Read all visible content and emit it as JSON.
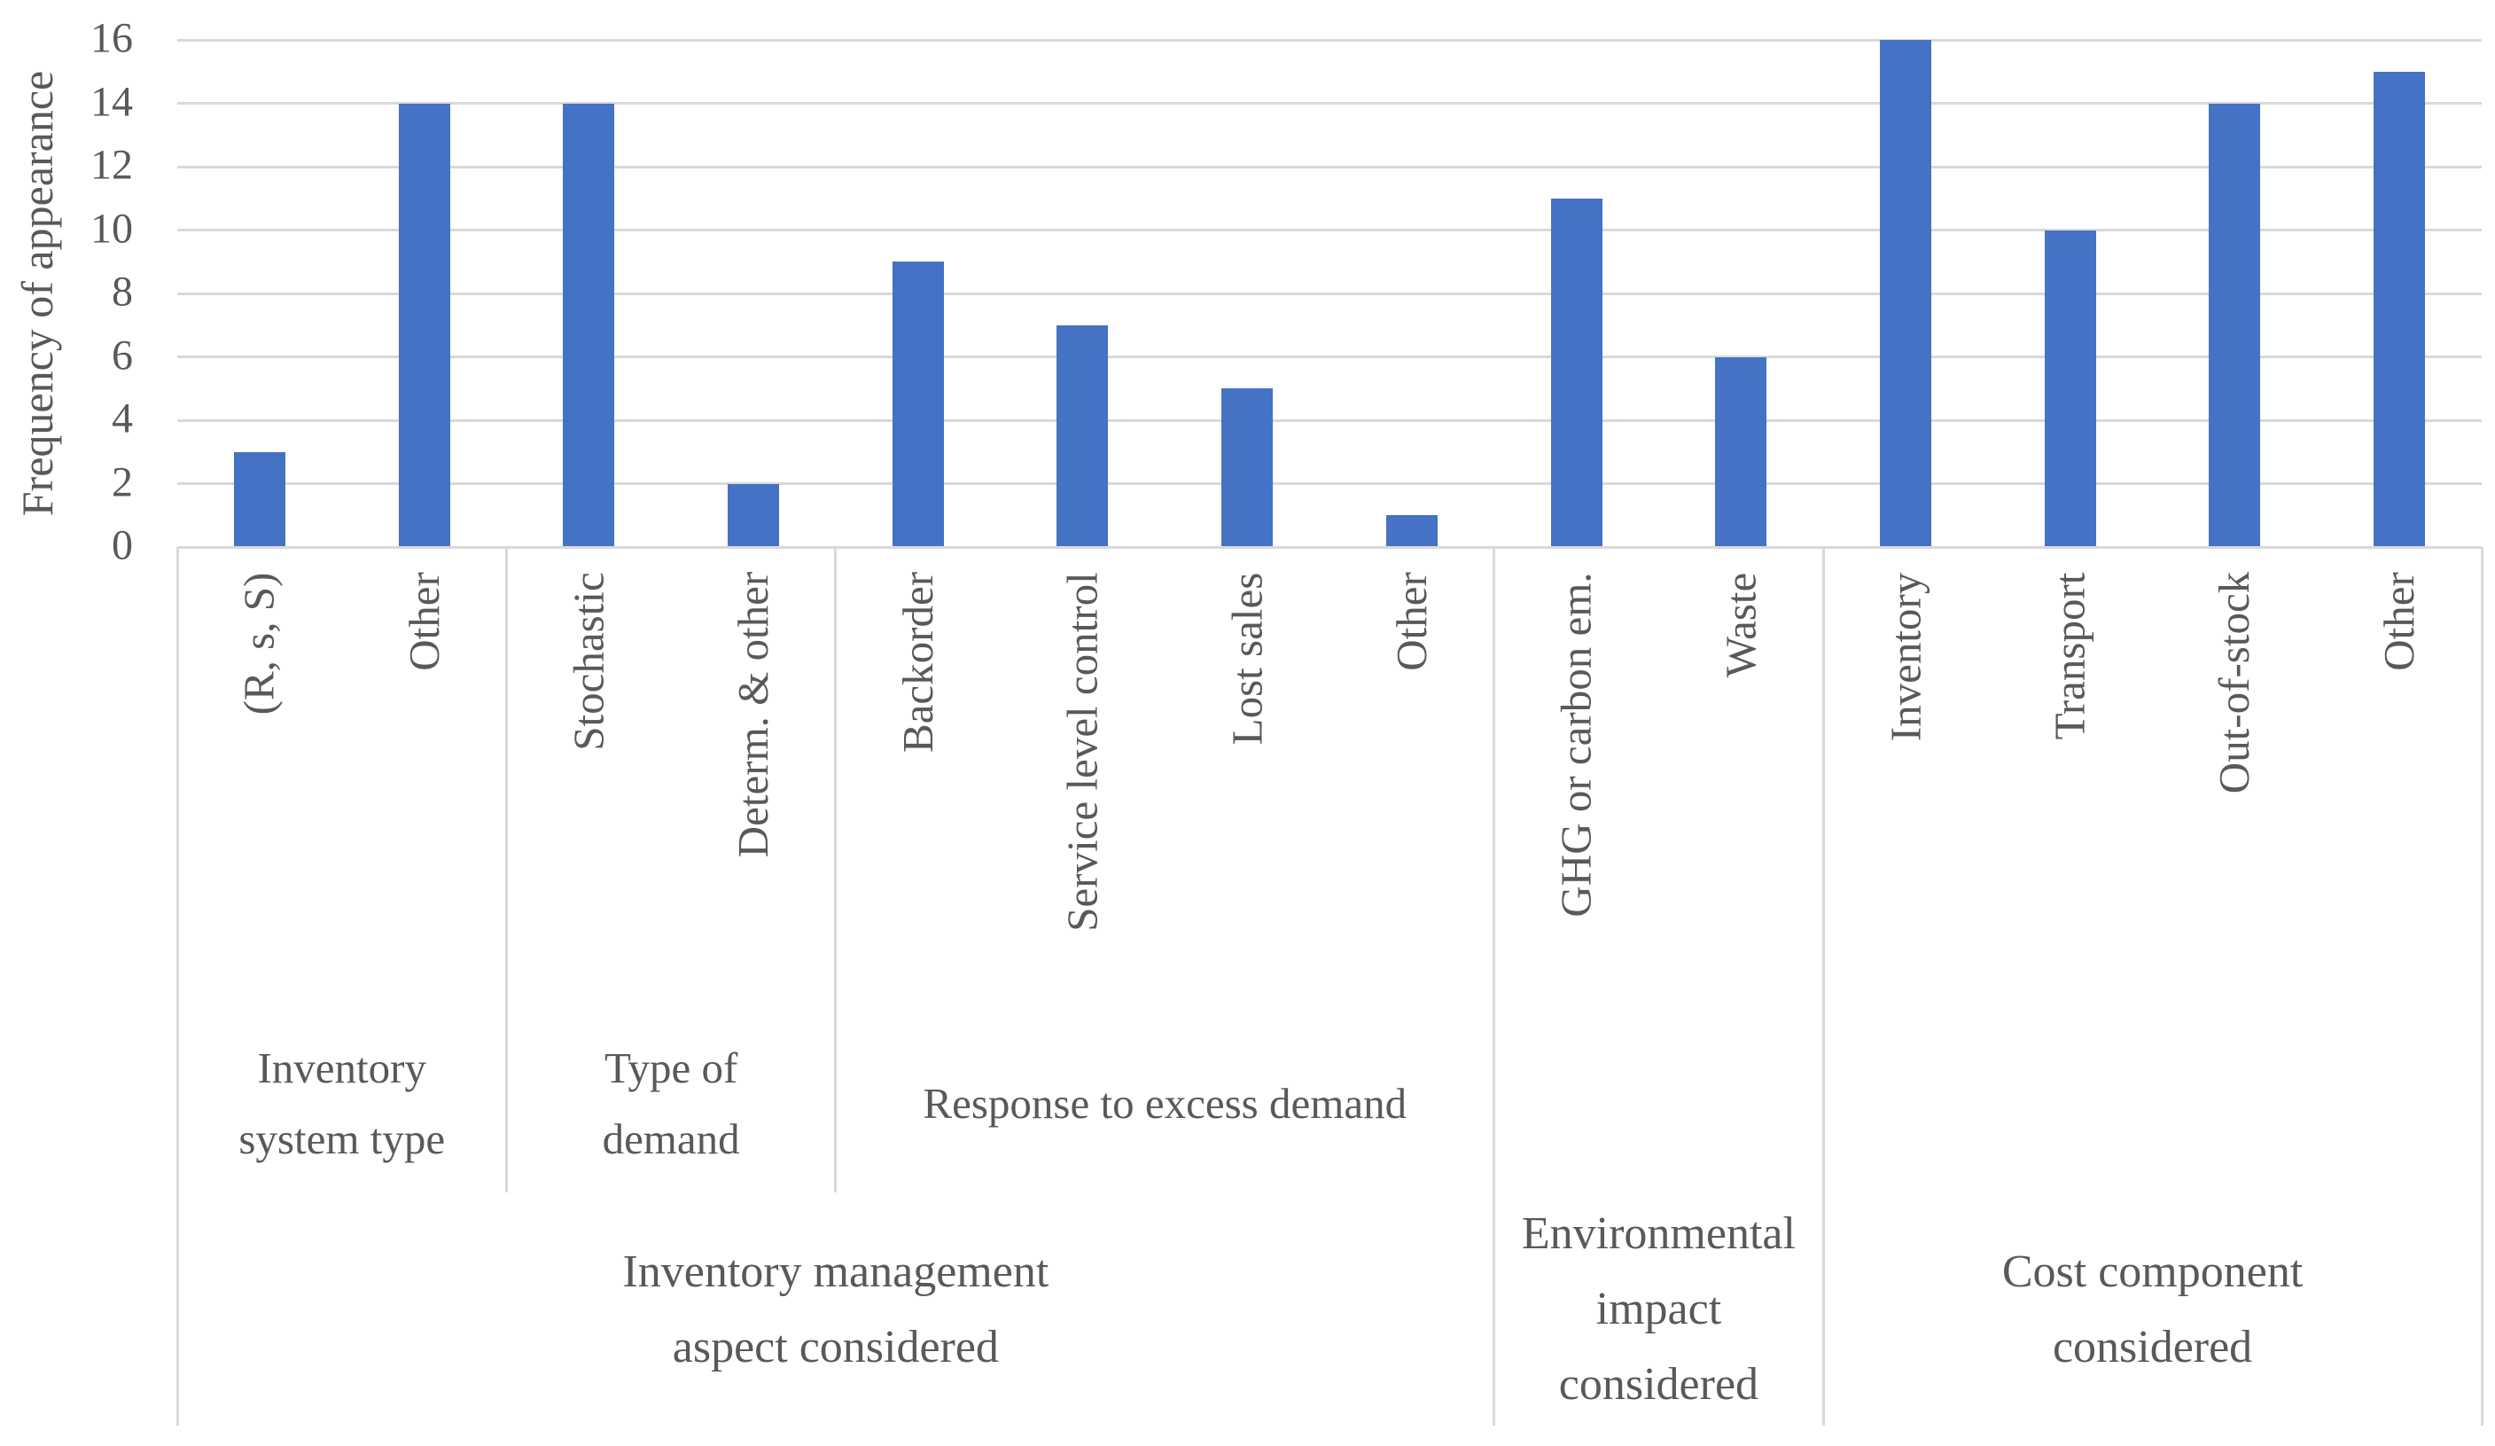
{
  "chart_data": {
    "type": "bar",
    "title": "",
    "ylabel": "Frequency of appearance",
    "xlabel": "",
    "ylim": [
      0,
      16
    ],
    "yticks": [
      0,
      2,
      4,
      6,
      8,
      10,
      12,
      14,
      16
    ],
    "grid": true,
    "legend": "none",
    "bar_color": "#4472C4",
    "grid_color": "#D9D9D9",
    "text_color": "#595959",
    "categories": [
      "(R, s, S)",
      "Other",
      "Stochastic",
      "Determ. & other",
      "Backorder",
      "Service level control",
      "Lost sales",
      "Other",
      "GHG or carbon em.",
      "Waste",
      "Inventory",
      "Transport",
      "Out-of-stock",
      "Other"
    ],
    "values": [
      3,
      14,
      14,
      2,
      9,
      7,
      5,
      1,
      11,
      6,
      16,
      10,
      14,
      15
    ],
    "subgroups": [
      {
        "label_lines": [
          "Inventory",
          "system type"
        ],
        "span": 2
      },
      {
        "label_lines": [
          "Type of",
          "demand"
        ],
        "span": 2
      },
      {
        "label_lines": [
          "Response to excess demand"
        ],
        "span": 4
      }
    ],
    "groups": [
      {
        "label_lines": [
          "Inventory management",
          "aspect considered"
        ],
        "span": 8
      },
      {
        "label_lines": [
          "Environmental",
          "impact",
          "considered"
        ],
        "span": 2
      },
      {
        "label_lines": [
          "Cost component",
          "considered"
        ],
        "span": 4
      }
    ]
  }
}
